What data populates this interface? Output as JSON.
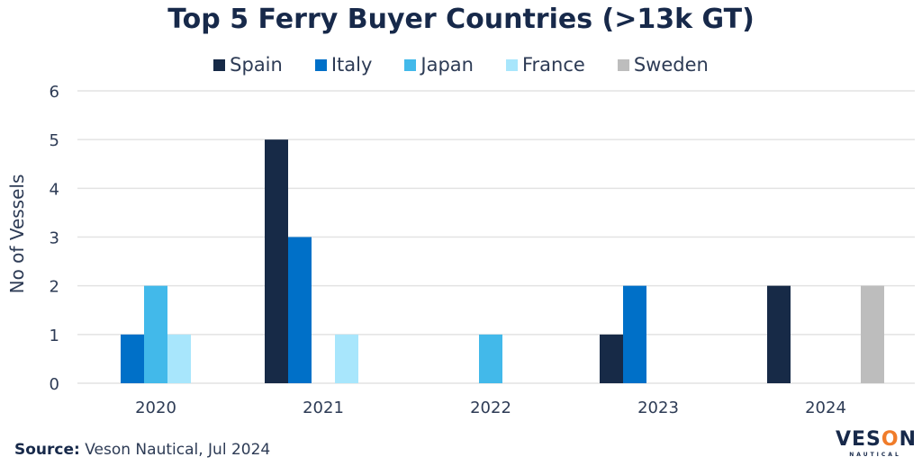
{
  "chart_data": {
    "type": "bar",
    "title": "Top 5 Ferry Buyer Countries (>13k GT)",
    "xlabel": "",
    "ylabel": "No of Vessels",
    "ylim": [
      0,
      6
    ],
    "yticks": [
      0,
      1,
      2,
      3,
      4,
      5,
      6
    ],
    "grid": true,
    "legend_position": "top",
    "categories": [
      "2020",
      "2021",
      "2022",
      "2023",
      "2024"
    ],
    "series": [
      {
        "name": "Spain",
        "color": "#172a47",
        "values": [
          0,
          5,
          0,
          1,
          2
        ]
      },
      {
        "name": "Italy",
        "color": "#0070c8",
        "values": [
          1,
          3,
          0,
          2,
          0
        ]
      },
      {
        "name": "Japan",
        "color": "#42b9ea",
        "values": [
          2,
          0,
          1,
          0,
          0
        ]
      },
      {
        "name": "France",
        "color": "#a8e6fc",
        "values": [
          1,
          1,
          0,
          0,
          0
        ]
      },
      {
        "name": "Sweden",
        "color": "#bdbdbd",
        "values": [
          0,
          0,
          0,
          0,
          2
        ]
      }
    ]
  },
  "footer": {
    "source_label": "Source:",
    "source_text": " Veson Nautical, Jul 2024"
  },
  "logo": {
    "main_pre": "VES",
    "main_o": "O",
    "main_post": "N",
    "sub": "NAUTICAL"
  }
}
